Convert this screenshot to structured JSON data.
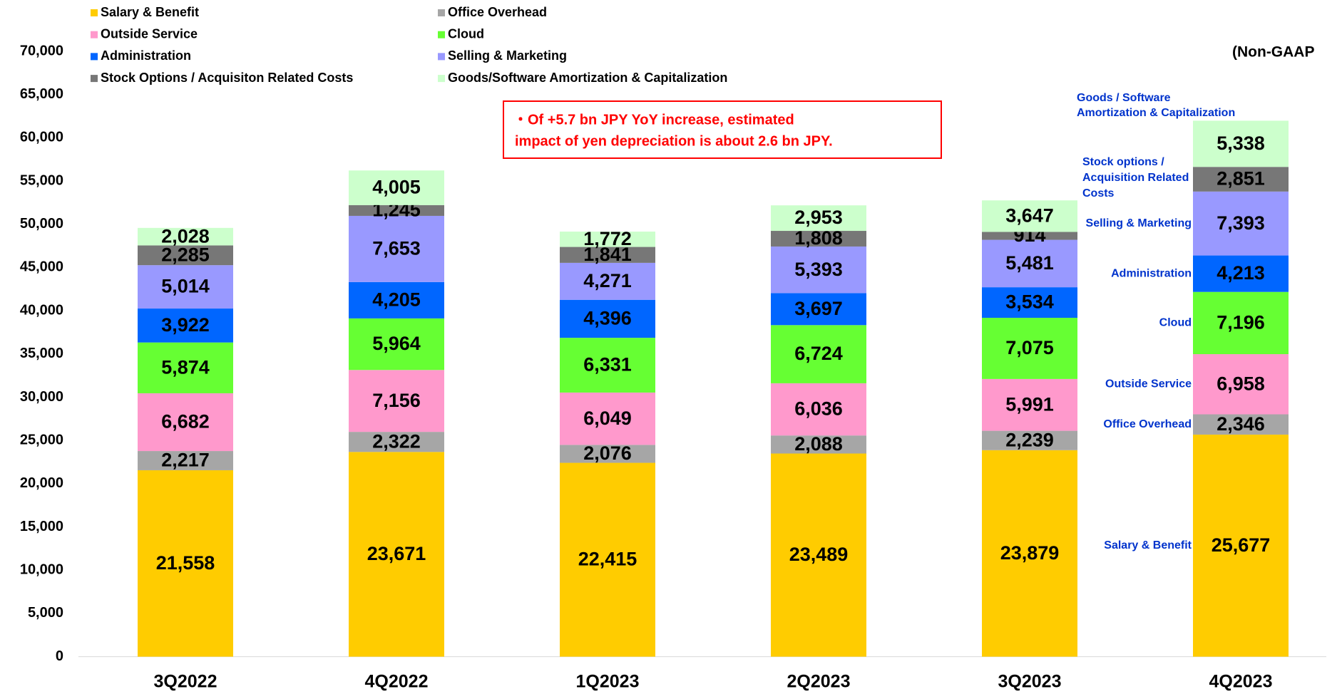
{
  "chart_data": {
    "type": "stacked_bar",
    "categories": [
      "3Q2022",
      "4Q2022",
      "1Q2023",
      "2Q2023",
      "3Q2023",
      "4Q2023"
    ],
    "series": [
      {
        "name": "Salary & Benefit",
        "color": "#ffcc00",
        "values": [
          21558,
          23671,
          22415,
          23489,
          23879,
          25677
        ],
        "value_labels": [
          "21,558",
          "23,671",
          "22,415",
          "23,489",
          "23,879",
          "25,677"
        ]
      },
      {
        "name": "Office Overhead",
        "color": "#a6a6a6",
        "values": [
          2217,
          2322,
          2076,
          2088,
          2239,
          2346
        ],
        "value_labels": [
          "2,217",
          "2,322",
          "2,076",
          "2,088",
          "2,239",
          "2,346"
        ]
      },
      {
        "name": "Outside Service",
        "color": "#ff99cc",
        "values": [
          6682,
          7156,
          6049,
          6036,
          5991,
          6958
        ],
        "value_labels": [
          "6,682",
          "7,156",
          "6,049",
          "6,036",
          "5,991",
          "6,958"
        ]
      },
      {
        "name": "Cloud",
        "color": "#66ff33",
        "values": [
          5874,
          5964,
          6331,
          6724,
          7075,
          7196
        ],
        "value_labels": [
          "5,874",
          "5,964",
          "6,331",
          "6,724",
          "7,075",
          "7,196"
        ]
      },
      {
        "name": "Administration",
        "color": "#0066ff",
        "values": [
          3922,
          4205,
          4396,
          3697,
          3534,
          4213
        ],
        "value_labels": [
          "3,922",
          "4,205",
          "4,396",
          "3,697",
          "3,534",
          "4,213"
        ]
      },
      {
        "name": "Selling & Marketing",
        "color": "#9999ff",
        "values": [
          5014,
          7653,
          4271,
          5393,
          5481,
          7393
        ],
        "value_labels": [
          "5,014",
          "7,653",
          "4,271",
          "5,393",
          "5,481",
          "7,393"
        ]
      },
      {
        "name": "Stock Options / Acquisiton Related Costs",
        "color": "#777777",
        "values": [
          2285,
          1245,
          1841,
          1808,
          914,
          2851
        ],
        "value_labels": [
          "2,285",
          "1,245",
          "1,841",
          "1,808",
          "914",
          "2,851"
        ]
      },
      {
        "name": "Goods/Software Amortization & Capitalization",
        "color": "#ccffcc",
        "values": [
          2028,
          4005,
          1772,
          2953,
          3647,
          5338
        ],
        "value_labels": [
          "2,028",
          "4,005",
          "1,772",
          "2,953",
          "3,647",
          "5,338"
        ]
      }
    ],
    "ylim": [
      0,
      70000
    ],
    "yticks": [
      0,
      {
        "value": 5000,
        "label": "5,000"
      },
      {
        "value": 10000,
        "label": "10,000"
      },
      {
        "value": 15000,
        "label": "15,000"
      },
      {
        "value": 20000,
        "label": "20,000"
      },
      {
        "value": 25000,
        "label": "25,000"
      },
      {
        "value": 30000,
        "label": "30,000"
      },
      {
        "value": 35000,
        "label": "35,000"
      },
      {
        "value": 40000,
        "label": "40,000"
      },
      {
        "value": 45000,
        "label": "45,000"
      },
      {
        "value": 50000,
        "label": "50,000"
      },
      {
        "value": 55000,
        "label": "55,000"
      },
      {
        "value": 60000,
        "label": "60,000"
      },
      {
        "value": 65000,
        "label": "65,000"
      },
      {
        "value": 70000,
        "label": "70,000"
      }
    ],
    "grid": false,
    "subtitle": "(Non-GAAP",
    "callout": [
      "・Of +5.7 bn JPY YoY increase, estimated",
      "impact of yen depreciation is about 2.6 bn JPY."
    ],
    "annotations": [
      [
        "Salary & Benefit"
      ],
      [
        "Office  Overhead"
      ],
      [
        "Outside Service"
      ],
      [
        "Cloud"
      ],
      [
        "Administration"
      ],
      [
        "Selling & Marketing"
      ],
      [
        "Stock options /",
        "Acquisition Related",
        "Costs"
      ],
      [
        "Goods / Software",
        "Amortization & Capitalization"
      ]
    ]
  }
}
